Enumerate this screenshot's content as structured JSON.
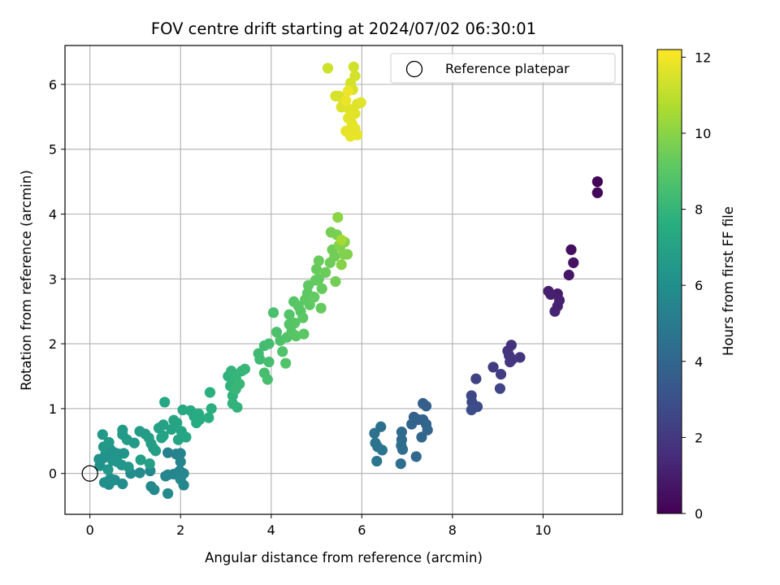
{
  "chart_data": {
    "type": "scatter",
    "title": "FOV centre drift starting at 2024/07/02 06:30:01",
    "xlabel": "Angular distance from reference (arcmin)",
    "ylabel": "Rotation from reference (arcmin)",
    "xlim": [
      -0.55,
      11.75
    ],
    "ylim": [
      -0.63,
      6.6
    ],
    "xticks": [
      0,
      2,
      4,
      6,
      8,
      10
    ],
    "yticks": [
      0,
      1,
      2,
      3,
      4,
      5,
      6
    ],
    "grid": true,
    "legend": {
      "position": "top-right",
      "entries": [
        {
          "label": "Reference platepar",
          "marker": "open-circle"
        }
      ]
    },
    "reference_point": {
      "x": 0,
      "y": 0
    },
    "colorbar": {
      "label": "Hours from first FF file",
      "colormap": "viridis",
      "range": [
        0,
        12.2
      ],
      "ticks": [
        0,
        2,
        4,
        6,
        8,
        10,
        12
      ]
    },
    "points": [
      {
        "x": 11.2,
        "y": 4.5,
        "h": 0.1
      },
      {
        "x": 11.2,
        "y": 4.33,
        "h": 0.2
      },
      {
        "x": 11.2,
        "y": 4.33,
        "h": 0.25
      },
      {
        "x": 10.62,
        "y": 3.45,
        "h": 0.5
      },
      {
        "x": 10.67,
        "y": 3.25,
        "h": 0.6
      },
      {
        "x": 10.57,
        "y": 3.06,
        "h": 0.7
      },
      {
        "x": 10.32,
        "y": 2.77,
        "h": 0.9
      },
      {
        "x": 10.12,
        "y": 2.81,
        "h": 1.0
      },
      {
        "x": 10.17,
        "y": 2.76,
        "h": 1.05
      },
      {
        "x": 10.36,
        "y": 2.67,
        "h": 1.1
      },
      {
        "x": 10.32,
        "y": 2.58,
        "h": 1.15
      },
      {
        "x": 10.26,
        "y": 2.5,
        "h": 1.2
      },
      {
        "x": 9.3,
        "y": 1.98,
        "h": 1.7
      },
      {
        "x": 9.22,
        "y": 1.89,
        "h": 1.75
      },
      {
        "x": 9.25,
        "y": 1.82,
        "h": 1.8
      },
      {
        "x": 9.49,
        "y": 1.79,
        "h": 1.85
      },
      {
        "x": 9.32,
        "y": 1.76,
        "h": 1.9
      },
      {
        "x": 9.27,
        "y": 1.72,
        "h": 1.95
      },
      {
        "x": 8.9,
        "y": 1.64,
        "h": 2.1
      },
      {
        "x": 9.07,
        "y": 1.53,
        "h": 2.2
      },
      {
        "x": 8.52,
        "y": 1.46,
        "h": 2.4
      },
      {
        "x": 9.05,
        "y": 1.31,
        "h": 2.5
      },
      {
        "x": 8.42,
        "y": 1.2,
        "h": 2.6
      },
      {
        "x": 8.43,
        "y": 1.1,
        "h": 2.7
      },
      {
        "x": 8.55,
        "y": 1.03,
        "h": 2.8
      },
      {
        "x": 8.42,
        "y": 0.98,
        "h": 2.9
      },
      {
        "x": 7.35,
        "y": 1.08,
        "h": 3.6
      },
      {
        "x": 7.42,
        "y": 1.04,
        "h": 3.65
      },
      {
        "x": 7.15,
        "y": 0.87,
        "h": 3.7
      },
      {
        "x": 7.35,
        "y": 0.83,
        "h": 3.8
      },
      {
        "x": 7.25,
        "y": 0.83,
        "h": 3.85
      },
      {
        "x": 7.1,
        "y": 0.76,
        "h": 3.9
      },
      {
        "x": 7.42,
        "y": 0.76,
        "h": 3.95
      },
      {
        "x": 7.45,
        "y": 0.67,
        "h": 4.0
      },
      {
        "x": 7.32,
        "y": 0.56,
        "h": 4.05
      },
      {
        "x": 7.2,
        "y": 0.26,
        "h": 4.1
      },
      {
        "x": 6.88,
        "y": 0.64,
        "h": 4.2
      },
      {
        "x": 6.88,
        "y": 0.52,
        "h": 4.25
      },
      {
        "x": 6.87,
        "y": 0.43,
        "h": 4.3
      },
      {
        "x": 6.9,
        "y": 0.37,
        "h": 4.35
      },
      {
        "x": 6.86,
        "y": 0.15,
        "h": 4.4
      },
      {
        "x": 6.42,
        "y": 0.72,
        "h": 4.5
      },
      {
        "x": 6.28,
        "y": 0.62,
        "h": 4.55
      },
      {
        "x": 6.3,
        "y": 0.47,
        "h": 4.6
      },
      {
        "x": 6.35,
        "y": 0.41,
        "h": 4.65
      },
      {
        "x": 6.45,
        "y": 0.36,
        "h": 4.7
      },
      {
        "x": 6.33,
        "y": 0.19,
        "h": 4.75
      },
      {
        "x": 1.72,
        "y": 0.32,
        "h": 5.3
      },
      {
        "x": 1.9,
        "y": 0.3,
        "h": 5.35
      },
      {
        "x": 2.0,
        "y": 0.31,
        "h": 5.4
      },
      {
        "x": 2.0,
        "y": 0.18,
        "h": 5.45
      },
      {
        "x": 1.98,
        "y": 0.04,
        "h": 5.5
      },
      {
        "x": 2.07,
        "y": 0.0,
        "h": 5.55
      },
      {
        "x": 1.85,
        "y": -0.01,
        "h": 5.55
      },
      {
        "x": 1.72,
        "y": -0.02,
        "h": 5.6
      },
      {
        "x": 1.67,
        "y": -0.04,
        "h": 5.6
      },
      {
        "x": 2.0,
        "y": -0.09,
        "h": 5.65
      },
      {
        "x": 2.07,
        "y": -0.18,
        "h": 5.65
      },
      {
        "x": 1.33,
        "y": 0.04,
        "h": 5.7
      },
      {
        "x": 1.35,
        "y": -0.2,
        "h": 5.7
      },
      {
        "x": 1.42,
        "y": -0.25,
        "h": 5.75
      },
      {
        "x": 1.72,
        "y": -0.31,
        "h": 5.75
      },
      {
        "x": 1.1,
        "y": 0.01,
        "h": 5.8
      },
      {
        "x": 0.9,
        "y": 0.0,
        "h": 5.85
      },
      {
        "x": 0.72,
        "y": -0.16,
        "h": 5.9
      },
      {
        "x": 0.42,
        "y": -0.17,
        "h": 5.95
      },
      {
        "x": 0.32,
        "y": -0.14,
        "h": 6.0
      },
      {
        "x": 0.45,
        "y": -0.08,
        "h": 6.05
      },
      {
        "x": 0.55,
        "y": -0.1,
        "h": 6.05
      },
      {
        "x": 0.22,
        "y": 0.12,
        "h": 6.1
      },
      {
        "x": 0.2,
        "y": 0.22,
        "h": 6.15
      },
      {
        "x": 0.3,
        "y": 0.24,
        "h": 6.15
      },
      {
        "x": 0.35,
        "y": 0.31,
        "h": 6.2
      },
      {
        "x": 0.45,
        "y": 0.37,
        "h": 6.2
      },
      {
        "x": 0.55,
        "y": 0.32,
        "h": 6.25
      },
      {
        "x": 0.65,
        "y": 0.3,
        "h": 6.25
      },
      {
        "x": 0.75,
        "y": 0.31,
        "h": 6.3
      },
      {
        "x": 0.5,
        "y": 0.2,
        "h": 6.3
      },
      {
        "x": 0.6,
        "y": 0.18,
        "h": 6.35
      },
      {
        "x": 0.7,
        "y": 0.13,
        "h": 6.35
      },
      {
        "x": 0.85,
        "y": 0.1,
        "h": 6.4
      },
      {
        "x": 0.4,
        "y": 0.06,
        "h": 6.4
      },
      {
        "x": 0.3,
        "y": 0.41,
        "h": 6.45
      },
      {
        "x": 0.42,
        "y": 0.48,
        "h": 6.5
      },
      {
        "x": 0.28,
        "y": 0.6,
        "h": 6.5
      },
      {
        "x": 0.72,
        "y": 0.6,
        "h": 6.55
      },
      {
        "x": 0.72,
        "y": 0.67,
        "h": 6.55
      },
      {
        "x": 0.82,
        "y": 0.52,
        "h": 6.6
      },
      {
        "x": 0.98,
        "y": 0.47,
        "h": 6.6
      },
      {
        "x": 1.1,
        "y": 0.65,
        "h": 6.65
      },
      {
        "x": 1.22,
        "y": 0.61,
        "h": 6.7
      },
      {
        "x": 1.3,
        "y": 0.55,
        "h": 6.75
      },
      {
        "x": 1.35,
        "y": 0.46,
        "h": 6.8
      },
      {
        "x": 1.4,
        "y": 0.39,
        "h": 6.8
      },
      {
        "x": 1.45,
        "y": 0.35,
        "h": 6.85
      },
      {
        "x": 1.12,
        "y": 0.21,
        "h": 6.85
      },
      {
        "x": 1.32,
        "y": 0.15,
        "h": 6.9
      },
      {
        "x": 1.52,
        "y": 0.7,
        "h": 6.95
      },
      {
        "x": 1.62,
        "y": 0.75,
        "h": 7.0
      },
      {
        "x": 1.58,
        "y": 0.55,
        "h": 7.0
      },
      {
        "x": 1.62,
        "y": 0.58,
        "h": 7.05
      },
      {
        "x": 1.8,
        "y": 0.68,
        "h": 7.05
      },
      {
        "x": 1.85,
        "y": 0.82,
        "h": 7.1
      },
      {
        "x": 1.92,
        "y": 0.78,
        "h": 7.1
      },
      {
        "x": 2.02,
        "y": 0.65,
        "h": 7.15
      },
      {
        "x": 1.95,
        "y": 0.52,
        "h": 7.15
      },
      {
        "x": 2.12,
        "y": 0.56,
        "h": 7.2
      },
      {
        "x": 1.65,
        "y": 1.1,
        "h": 7.25
      },
      {
        "x": 2.05,
        "y": 0.98,
        "h": 7.3
      },
      {
        "x": 2.22,
        "y": 0.97,
        "h": 7.35
      },
      {
        "x": 2.3,
        "y": 0.88,
        "h": 7.4
      },
      {
        "x": 2.35,
        "y": 0.78,
        "h": 7.45
      },
      {
        "x": 2.4,
        "y": 0.92,
        "h": 7.5
      },
      {
        "x": 2.42,
        "y": 0.83,
        "h": 7.5
      },
      {
        "x": 2.62,
        "y": 0.86,
        "h": 7.6
      },
      {
        "x": 2.68,
        "y": 1.0,
        "h": 7.65
      },
      {
        "x": 2.65,
        "y": 1.25,
        "h": 7.7
      },
      {
        "x": 3.05,
        "y": 1.5,
        "h": 7.8
      },
      {
        "x": 3.1,
        "y": 1.35,
        "h": 7.85
      },
      {
        "x": 3.15,
        "y": 1.2,
        "h": 7.85
      },
      {
        "x": 3.15,
        "y": 1.08,
        "h": 7.9
      },
      {
        "x": 3.25,
        "y": 1.02,
        "h": 7.9
      },
      {
        "x": 3.12,
        "y": 1.58,
        "h": 7.95
      },
      {
        "x": 3.22,
        "y": 1.48,
        "h": 8.0
      },
      {
        "x": 3.35,
        "y": 1.58,
        "h": 8.0
      },
      {
        "x": 3.42,
        "y": 1.61,
        "h": 8.05
      },
      {
        "x": 3.3,
        "y": 1.38,
        "h": 8.1
      },
      {
        "x": 3.22,
        "y": 1.3,
        "h": 8.1
      },
      {
        "x": 3.72,
        "y": 1.85,
        "h": 8.3
      },
      {
        "x": 3.75,
        "y": 1.76,
        "h": 8.35
      },
      {
        "x": 3.85,
        "y": 1.97,
        "h": 8.4
      },
      {
        "x": 3.95,
        "y": 2.0,
        "h": 8.45
      },
      {
        "x": 3.95,
        "y": 1.72,
        "h": 8.5
      },
      {
        "x": 3.85,
        "y": 1.55,
        "h": 8.5
      },
      {
        "x": 3.92,
        "y": 1.45,
        "h": 8.55
      },
      {
        "x": 4.05,
        "y": 2.48,
        "h": 8.6
      },
      {
        "x": 4.12,
        "y": 2.18,
        "h": 8.65
      },
      {
        "x": 4.2,
        "y": 2.05,
        "h": 8.7
      },
      {
        "x": 4.25,
        "y": 1.88,
        "h": 8.75
      },
      {
        "x": 4.32,
        "y": 1.7,
        "h": 8.8
      },
      {
        "x": 4.35,
        "y": 2.1,
        "h": 8.8
      },
      {
        "x": 4.4,
        "y": 2.3,
        "h": 8.85
      },
      {
        "x": 4.4,
        "y": 2.45,
        "h": 8.85
      },
      {
        "x": 4.45,
        "y": 2.18,
        "h": 8.9
      },
      {
        "x": 4.5,
        "y": 2.65,
        "h": 8.9
      },
      {
        "x": 4.52,
        "y": 2.32,
        "h": 8.95
      },
      {
        "x": 4.55,
        "y": 2.12,
        "h": 8.95
      },
      {
        "x": 4.6,
        "y": 2.58,
        "h": 9.0
      },
      {
        "x": 4.65,
        "y": 2.5,
        "h": 9.0
      },
      {
        "x": 4.7,
        "y": 2.4,
        "h": 9.05
      },
      {
        "x": 4.72,
        "y": 2.15,
        "h": 9.05
      },
      {
        "x": 4.75,
        "y": 2.68,
        "h": 9.1
      },
      {
        "x": 4.8,
        "y": 2.78,
        "h": 9.1
      },
      {
        "x": 4.82,
        "y": 2.9,
        "h": 9.15
      },
      {
        "x": 4.85,
        "y": 2.6,
        "h": 9.15
      },
      {
        "x": 4.95,
        "y": 2.72,
        "h": 9.2
      },
      {
        "x": 4.98,
        "y": 2.98,
        "h": 9.2
      },
      {
        "x": 5.05,
        "y": 3.0,
        "h": 9.25
      },
      {
        "x": 5.1,
        "y": 2.55,
        "h": 9.25
      },
      {
        "x": 5.12,
        "y": 2.85,
        "h": 9.3
      },
      {
        "x": 5.0,
        "y": 3.15,
        "h": 9.3
      },
      {
        "x": 5.05,
        "y": 3.28,
        "h": 9.35
      },
      {
        "x": 5.2,
        "y": 3.1,
        "h": 9.4
      },
      {
        "x": 5.3,
        "y": 3.25,
        "h": 9.45
      },
      {
        "x": 5.35,
        "y": 3.45,
        "h": 9.5
      },
      {
        "x": 5.4,
        "y": 3.35,
        "h": 9.5
      },
      {
        "x": 5.42,
        "y": 2.96,
        "h": 9.55
      },
      {
        "x": 5.32,
        "y": 3.72,
        "h": 9.6
      },
      {
        "x": 5.45,
        "y": 3.68,
        "h": 9.65
      },
      {
        "x": 5.52,
        "y": 3.5,
        "h": 9.7
      },
      {
        "x": 5.55,
        "y": 3.6,
        "h": 9.75
      },
      {
        "x": 5.6,
        "y": 3.38,
        "h": 9.8
      },
      {
        "x": 5.68,
        "y": 3.38,
        "h": 9.8
      },
      {
        "x": 5.5,
        "y": 3.52,
        "h": 9.85
      },
      {
        "x": 5.55,
        "y": 3.22,
        "h": 9.9
      },
      {
        "x": 5.62,
        "y": 3.57,
        "h": 9.9
      },
      {
        "x": 5.47,
        "y": 3.95,
        "h": 10.0
      },
      {
        "x": 5.55,
        "y": 3.6,
        "h": 10.5
      },
      {
        "x": 5.25,
        "y": 6.25,
        "h": 11.3
      },
      {
        "x": 5.82,
        "y": 6.27,
        "h": 11.35
      },
      {
        "x": 5.85,
        "y": 6.13,
        "h": 11.4
      },
      {
        "x": 5.75,
        "y": 6.02,
        "h": 11.4
      },
      {
        "x": 5.8,
        "y": 5.92,
        "h": 11.45
      },
      {
        "x": 5.42,
        "y": 5.82,
        "h": 11.5
      },
      {
        "x": 5.5,
        "y": 5.82,
        "h": 11.5
      },
      {
        "x": 5.6,
        "y": 5.72,
        "h": 11.55
      },
      {
        "x": 5.55,
        "y": 5.65,
        "h": 11.55
      },
      {
        "x": 5.72,
        "y": 5.62,
        "h": 11.6
      },
      {
        "x": 5.9,
        "y": 5.7,
        "h": 11.6
      },
      {
        "x": 5.98,
        "y": 5.72,
        "h": 11.65
      },
      {
        "x": 5.85,
        "y": 5.55,
        "h": 11.65
      },
      {
        "x": 5.78,
        "y": 5.4,
        "h": 11.7
      },
      {
        "x": 5.7,
        "y": 5.48,
        "h": 11.7
      },
      {
        "x": 5.85,
        "y": 5.32,
        "h": 11.75
      },
      {
        "x": 5.65,
        "y": 5.28,
        "h": 11.75
      },
      {
        "x": 5.75,
        "y": 5.2,
        "h": 11.8
      },
      {
        "x": 5.9,
        "y": 5.22,
        "h": 11.8
      },
      {
        "x": 5.65,
        "y": 5.75,
        "h": 11.85
      },
      {
        "x": 5.7,
        "y": 5.9,
        "h": 11.9
      }
    ]
  }
}
